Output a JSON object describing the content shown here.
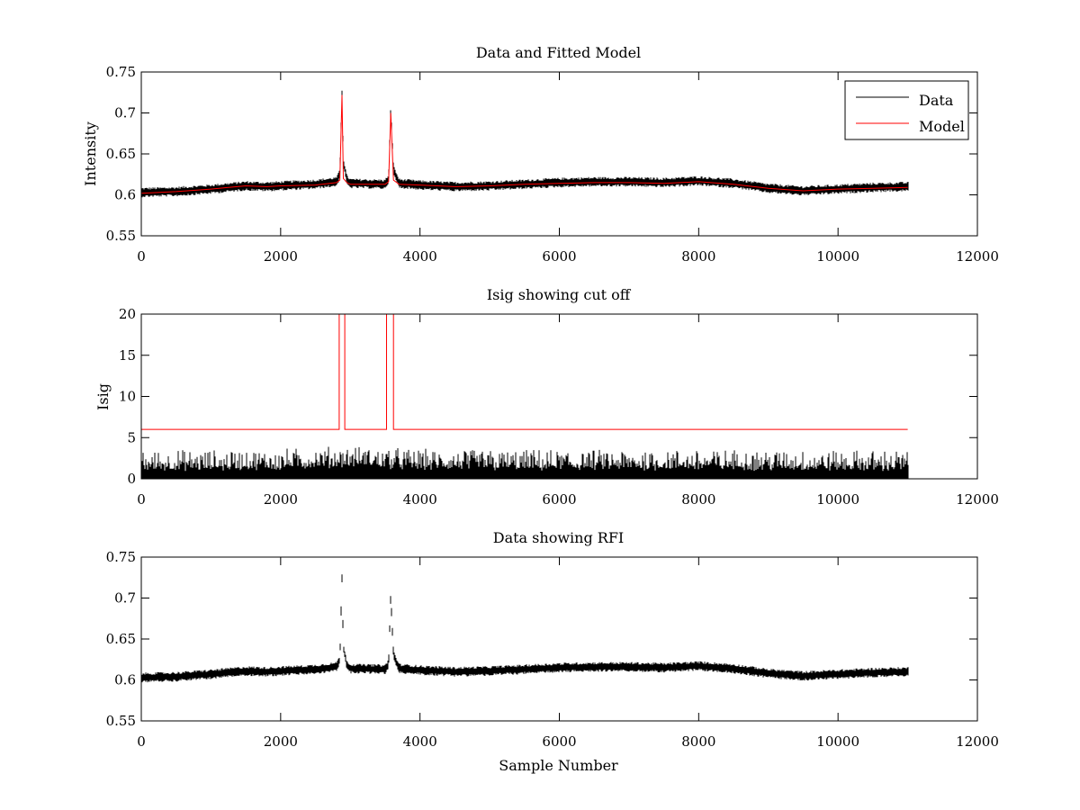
{
  "colors": {
    "data": "#000000",
    "model": "#ff0000",
    "axes": "#000000",
    "background": "#ffffff"
  },
  "chart_data": [
    {
      "type": "line",
      "title": "Data and Fitted Model",
      "xlabel": "",
      "ylabel": "Intensity",
      "xlim": [
        0,
        12000
      ],
      "ylim": [
        0.55,
        0.75
      ],
      "xticks": [
        0,
        2000,
        4000,
        6000,
        8000,
        10000,
        12000
      ],
      "xtick_labels": [
        "0",
        "2000",
        "4000",
        "6000",
        "8000",
        "10000",
        "12000"
      ],
      "yticks": [
        0.55,
        0.6,
        0.65,
        0.7,
        0.75
      ],
      "ytick_labels": [
        "0.55",
        "0.6",
        "0.65",
        "0.7",
        "0.75"
      ],
      "legend": {
        "position": "top-right",
        "entries": [
          "Data",
          "Model"
        ]
      },
      "series": [
        {
          "name": "Data",
          "color": "#000000",
          "noise_amplitude": 0.006,
          "points": [
            [
              0,
              0.603
            ],
            [
              500,
              0.604
            ],
            [
              1000,
              0.607
            ],
            [
              1500,
              0.611
            ],
            [
              1800,
              0.61
            ],
            [
              2000,
              0.611
            ],
            [
              2500,
              0.613
            ],
            [
              2800,
              0.616
            ],
            [
              2850,
              0.625
            ],
            [
              2880,
              0.726
            ],
            [
              2900,
              0.64
            ],
            [
              2950,
              0.618
            ],
            [
              3000,
              0.614
            ],
            [
              3500,
              0.613
            ],
            [
              3550,
              0.62
            ],
            [
              3580,
              0.703
            ],
            [
              3620,
              0.63
            ],
            [
              3700,
              0.614
            ],
            [
              4000,
              0.612
            ],
            [
              4500,
              0.61
            ],
            [
              5000,
              0.611
            ],
            [
              5500,
              0.613
            ],
            [
              6000,
              0.615
            ],
            [
              6500,
              0.616
            ],
            [
              7000,
              0.616
            ],
            [
              7500,
              0.615
            ],
            [
              8000,
              0.617
            ],
            [
              8500,
              0.614
            ],
            [
              9000,
              0.608
            ],
            [
              9500,
              0.605
            ],
            [
              10000,
              0.607
            ],
            [
              10500,
              0.609
            ],
            [
              11000,
              0.61
            ]
          ]
        },
        {
          "name": "Model",
          "color": "#ff0000",
          "points": [
            [
              0,
              0.602
            ],
            [
              500,
              0.604
            ],
            [
              1000,
              0.607
            ],
            [
              1500,
              0.611
            ],
            [
              1800,
              0.61
            ],
            [
              2000,
              0.611
            ],
            [
              2500,
              0.612
            ],
            [
              2800,
              0.615
            ],
            [
              2850,
              0.618
            ],
            [
              2880,
              0.722
            ],
            [
              2900,
              0.62
            ],
            [
              2950,
              0.615
            ],
            [
              3000,
              0.613
            ],
            [
              3500,
              0.613
            ],
            [
              3550,
              0.616
            ],
            [
              3580,
              0.7
            ],
            [
              3620,
              0.618
            ],
            [
              3700,
              0.613
            ],
            [
              4000,
              0.612
            ],
            [
              4500,
              0.61
            ],
            [
              5000,
              0.611
            ],
            [
              5500,
              0.613
            ],
            [
              6000,
              0.614
            ],
            [
              6500,
              0.615
            ],
            [
              7000,
              0.615
            ],
            [
              7500,
              0.614
            ],
            [
              8000,
              0.616
            ],
            [
              8500,
              0.613
            ],
            [
              9000,
              0.608
            ],
            [
              9500,
              0.605
            ],
            [
              10000,
              0.607
            ],
            [
              10500,
              0.608
            ],
            [
              11000,
              0.609
            ]
          ]
        }
      ]
    },
    {
      "type": "line",
      "title": "Isig showing cut off",
      "xlabel": "",
      "ylabel": "Isig",
      "xlim": [
        0,
        12000
      ],
      "ylim": [
        0,
        20
      ],
      "xticks": [
        0,
        2000,
        4000,
        6000,
        8000,
        10000,
        12000
      ],
      "xtick_labels": [
        "0",
        "2000",
        "4000",
        "6000",
        "8000",
        "10000",
        "12000"
      ],
      "yticks": [
        0,
        5,
        10,
        15,
        20
      ],
      "ytick_labels": [
        "0",
        "5",
        "10",
        "15",
        "20"
      ],
      "series": [
        {
          "name": "Isig",
          "color": "#000000",
          "noise_max": 3,
          "points": [
            [
              0,
              0.9
            ],
            [
              1000,
              0.9
            ],
            [
              2000,
              1.0
            ],
            [
              2500,
              1.2
            ],
            [
              3000,
              1.4
            ],
            [
              3500,
              1.2
            ],
            [
              4000,
              1.0
            ],
            [
              6000,
              0.9
            ],
            [
              8000,
              1.0
            ],
            [
              10000,
              0.9
            ],
            [
              11000,
              0.9
            ]
          ]
        },
        {
          "name": "Cut off",
          "color": "#ff0000",
          "points": [
            [
              0,
              6
            ],
            [
              2840,
              6
            ],
            [
              2840,
              20
            ],
            [
              2920,
              20
            ],
            [
              2920,
              6
            ],
            [
              3520,
              6
            ],
            [
              3520,
              20
            ],
            [
              3620,
              20
            ],
            [
              3620,
              6
            ],
            [
              11000,
              6
            ]
          ]
        }
      ]
    },
    {
      "type": "line",
      "title": "Data showing RFI",
      "xlabel": "Sample Number",
      "ylabel": "",
      "xlim": [
        0,
        12000
      ],
      "ylim": [
        0.55,
        0.75
      ],
      "xticks": [
        0,
        2000,
        4000,
        6000,
        8000,
        10000,
        12000
      ],
      "xtick_labels": [
        "0",
        "2000",
        "4000",
        "6000",
        "8000",
        "10000",
        "12000"
      ],
      "yticks": [
        0.55,
        0.6,
        0.65,
        0.7,
        0.75
      ],
      "ytick_labels": [
        "0.55",
        "0.6",
        "0.65",
        "0.7",
        "0.75"
      ],
      "series": [
        {
          "name": "Data",
          "color": "#000000",
          "noise_amplitude": 0.006,
          "points": [
            [
              0,
              0.603
            ],
            [
              500,
              0.604
            ],
            [
              1000,
              0.607
            ],
            [
              1500,
              0.611
            ],
            [
              1800,
              0.61
            ],
            [
              2000,
              0.611
            ],
            [
              2500,
              0.613
            ],
            [
              2800,
              0.616
            ],
            [
              2850,
              0.625
            ],
            [
              2880,
              0.726
            ],
            [
              2900,
              0.64
            ],
            [
              2950,
              0.618
            ],
            [
              3000,
              0.614
            ],
            [
              3500,
              0.613
            ],
            [
              3550,
              0.62
            ],
            [
              3580,
              0.703
            ],
            [
              3620,
              0.63
            ],
            [
              3700,
              0.614
            ],
            [
              4000,
              0.612
            ],
            [
              4500,
              0.61
            ],
            [
              5000,
              0.611
            ],
            [
              5500,
              0.613
            ],
            [
              6000,
              0.615
            ],
            [
              6500,
              0.616
            ],
            [
              7000,
              0.616
            ],
            [
              7500,
              0.615
            ],
            [
              8000,
              0.617
            ],
            [
              8500,
              0.614
            ],
            [
              9000,
              0.608
            ],
            [
              9500,
              0.605
            ],
            [
              10000,
              0.607
            ],
            [
              10500,
              0.609
            ],
            [
              11000,
              0.61
            ]
          ]
        }
      ]
    }
  ]
}
